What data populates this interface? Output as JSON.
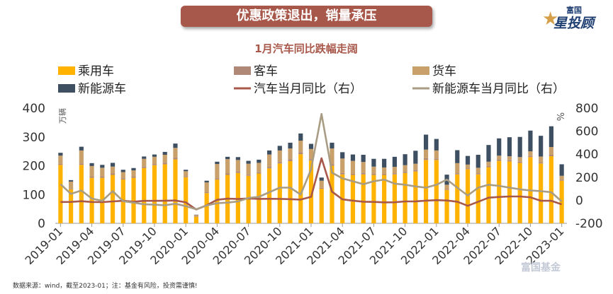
{
  "banner_title": "优惠政策退出，销量承压",
  "logo": {
    "small": "富国",
    "big": "星投顾",
    "mark": "star-icon"
  },
  "footnote": "数据来源：wind，截至2023-01；注：基金有风险，投资需谨慎!",
  "watermark": "富国基金",
  "chart_data": {
    "type": "bar",
    "title": "1月汽车同比跌幅走阔",
    "y_left_unit": "万辆",
    "y_right_unit": "%",
    "y_left_range": [
      0,
      400
    ],
    "y_left_ticks": [
      0,
      100,
      200,
      300,
      400
    ],
    "y_right_range": [
      -200,
      800
    ],
    "y_right_ticks": [
      -200,
      0,
      200,
      400,
      600,
      800
    ],
    "legend_position": "top",
    "colors": {
      "passenger": "#ffb300",
      "bus": "#b08878",
      "truck": "#c9a06a",
      "nev": "#3e4f61",
      "auto_yoy": "#a8584a",
      "nev_yoy": "#a89c84"
    },
    "x_tick_labels": [
      "2019-01",
      "2019-04",
      "2019-07",
      "2019-10",
      "2020-01",
      "2020-04",
      "2020-07",
      "2020-10",
      "2021-01",
      "2021-04",
      "2021-07",
      "2021-10",
      "2022-01",
      "2022-04",
      "2022-07",
      "2022-10",
      "2023-01"
    ],
    "categories": [
      "2019-01",
      "2019-02",
      "2019-03",
      "2019-04",
      "2019-05",
      "2019-06",
      "2019-07",
      "2019-08",
      "2019-09",
      "2019-10",
      "2019-11",
      "2019-12",
      "2020-01",
      "2020-02",
      "2020-03",
      "2020-04",
      "2020-05",
      "2020-06",
      "2020-07",
      "2020-08",
      "2020-09",
      "2020-10",
      "2020-11",
      "2020-12",
      "2021-01",
      "2021-02",
      "2021-03",
      "2021-04",
      "2021-05",
      "2021-06",
      "2021-07",
      "2021-08",
      "2021-09",
      "2021-10",
      "2021-11",
      "2021-12",
      "2022-01",
      "2022-02",
      "2022-03",
      "2022-04",
      "2022-05",
      "2022-06",
      "2022-07",
      "2022-08",
      "2022-09",
      "2022-10",
      "2022-11",
      "2022-12",
      "2023-01"
    ],
    "series": [
      {
        "name": "乘用车",
        "axis": "left",
        "kind": "bar",
        "values": [
          203,
          118,
          203,
          158,
          158,
          168,
          152,
          158,
          192,
          202,
          205,
          222,
          160,
          22,
          105,
          152,
          168,
          175,
          165,
          173,
          191,
          208,
          216,
          240,
          218,
          120,
          200,
          170,
          168,
          170,
          168,
          168,
          170,
          175,
          180,
          220,
          220,
          116,
          170,
          188,
          170,
          195,
          217,
          215,
          210,
          230,
          208,
          233,
          148
        ]
      },
      {
        "name": "客车",
        "axis": "left",
        "kind": "bar",
        "values": [
          4,
          2,
          5,
          5,
          5,
          5,
          4,
          4,
          5,
          4,
          5,
          6,
          3,
          1,
          3,
          4,
          5,
          5,
          4,
          4,
          5,
          5,
          6,
          7,
          5,
          3,
          5,
          5,
          4,
          5,
          4,
          4,
          4,
          5,
          5,
          6,
          5,
          3,
          4,
          3,
          3,
          4,
          4,
          4,
          4,
          4,
          4,
          5,
          3
        ]
      },
      {
        "name": "货车",
        "axis": "left",
        "kind": "bar",
        "values": [
          28,
          25,
          45,
          36,
          30,
          24,
          22,
          22,
          27,
          25,
          28,
          34,
          18,
          6,
          34,
          50,
          50,
          40,
          38,
          33,
          43,
          40,
          38,
          40,
          35,
          25,
          55,
          50,
          45,
          38,
          25,
          22,
          22,
          22,
          22,
          30,
          28,
          15,
          35,
          13,
          20,
          15,
          14,
          14,
          16,
          16,
          20,
          27,
          14
        ]
      },
      {
        "name": "新能源车",
        "axis": "left",
        "kind": "bar",
        "values": [
          10,
          5,
          13,
          10,
          10,
          13,
          8,
          8,
          8,
          8,
          10,
          15,
          5,
          1,
          6,
          8,
          8,
          10,
          10,
          11,
          14,
          16,
          20,
          25,
          18,
          11,
          20,
          22,
          22,
          25,
          27,
          30,
          35,
          38,
          45,
          52,
          40,
          35,
          45,
          30,
          45,
          58,
          60,
          66,
          70,
          72,
          72,
          72,
          40
        ]
      },
      {
        "name": "汽车当月同比（右）",
        "axis": "right",
        "kind": "line",
        "values": [
          -15,
          -14,
          -8,
          -15,
          -16,
          -10,
          -4,
          -12,
          -5,
          -5,
          -4,
          -2,
          -18,
          -80,
          -43,
          4,
          14,
          11,
          16,
          12,
          13,
          12,
          10,
          6,
          30,
          365,
          75,
          8,
          -3,
          -12,
          -14,
          -18,
          -17,
          -10,
          -9,
          -3,
          1,
          -2,
          -12,
          -48,
          -12,
          23,
          29,
          33,
          33,
          26,
          -4,
          -4,
          -35
        ]
      },
      {
        "name": "新能源车当月同比（右）",
        "axis": "right",
        "kind": "line",
        "values": [
          140,
          55,
          85,
          15,
          -5,
          80,
          -8,
          -20,
          -35,
          -38,
          -43,
          -30,
          -50,
          -78,
          -45,
          -25,
          -20,
          -10,
          20,
          30,
          70,
          110,
          110,
          50,
          270,
          750,
          240,
          190,
          165,
          140,
          165,
          180,
          145,
          135,
          120,
          110,
          135,
          180,
          110,
          42,
          110,
          135,
          125,
          110,
          95,
          85,
          80,
          70,
          -10
        ]
      }
    ]
  }
}
